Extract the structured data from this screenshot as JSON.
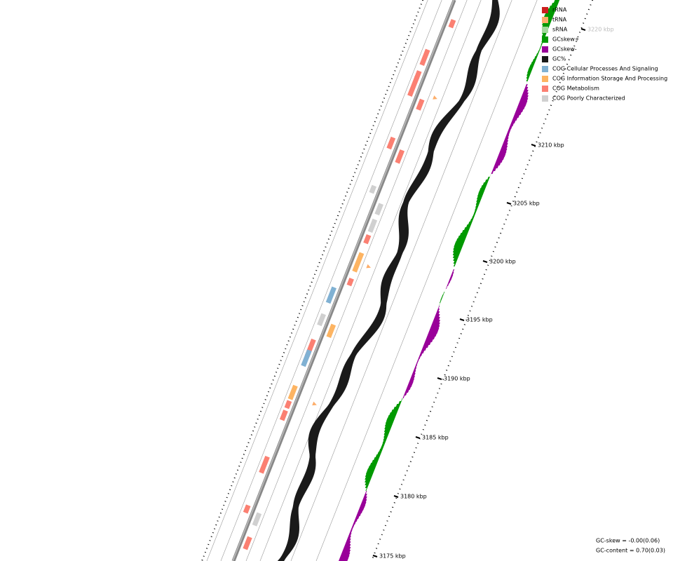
{
  "legend": {
    "items": [
      {
        "label": "rRNA",
        "color": "#cc1f1f"
      },
      {
        "label": "tRNA",
        "color": "#fdae6b"
      },
      {
        "label": "sRNA",
        "color": "#a1d99b"
      },
      {
        "label": "GCskew+",
        "color": "#009900"
      },
      {
        "label": "GCskew-",
        "color": "#990099"
      },
      {
        "label": "GC%",
        "color": "#1a1a1a"
      },
      {
        "label": "COG Cellular Processes And Signaling",
        "color": "#80b1d3"
      },
      {
        "label": "COG Information Storage And Processing",
        "color": "#fdb462"
      },
      {
        "label": "COG Metabolism",
        "color": "#fb8072"
      },
      {
        "label": "COG Poorly Characterized",
        "color": "#d0d0d0"
      }
    ]
  },
  "scale": {
    "labels": [
      "3175 kbp",
      "3180 kbp",
      "3185 kbp",
      "3190 kbp",
      "3195 kbp",
      "3200 kbp",
      "3205 kbp",
      "3210 kbp",
      "3220 kbp"
    ]
  },
  "stats": {
    "gc_skew": "GC-skew = -0.00(0.06)",
    "gc_content": "GC-content = 0.70(0.03)"
  }
}
